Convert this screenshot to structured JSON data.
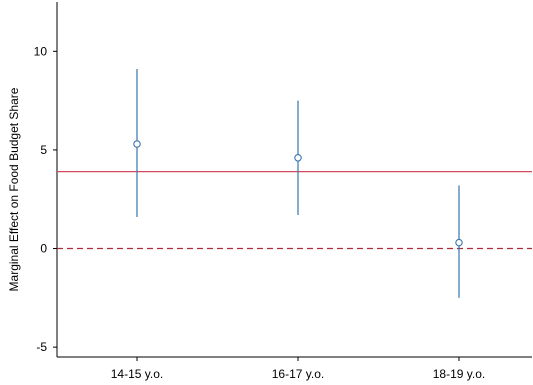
{
  "chart_data": {
    "type": "scatter",
    "title": "",
    "xlabel": "",
    "ylabel": "Marginal Effect on Food Budget Share",
    "categories": [
      "14-15 y.o.",
      "16-17 y.o.",
      "18-19 y.o."
    ],
    "values": [
      5.3,
      4.6,
      0.3
    ],
    "ci_low": [
      1.6,
      1.7,
      -2.5
    ],
    "ci_high": [
      9.1,
      7.5,
      3.2
    ],
    "reference_lines": [
      {
        "value": 3.9,
        "style": "solid",
        "color": "#d44a5c"
      },
      {
        "value": 0,
        "style": "dashed",
        "color": "#b02a3c"
      }
    ],
    "ylim": [
      -5.5,
      12.5
    ],
    "yticks": [
      -5,
      0,
      5,
      10
    ],
    "ytick_labels": [
      "-5",
      "0",
      "5",
      "10"
    ],
    "marker": "hollow-circle",
    "series_color": "#3a76ad",
    "grid": false,
    "legend": "none"
  }
}
